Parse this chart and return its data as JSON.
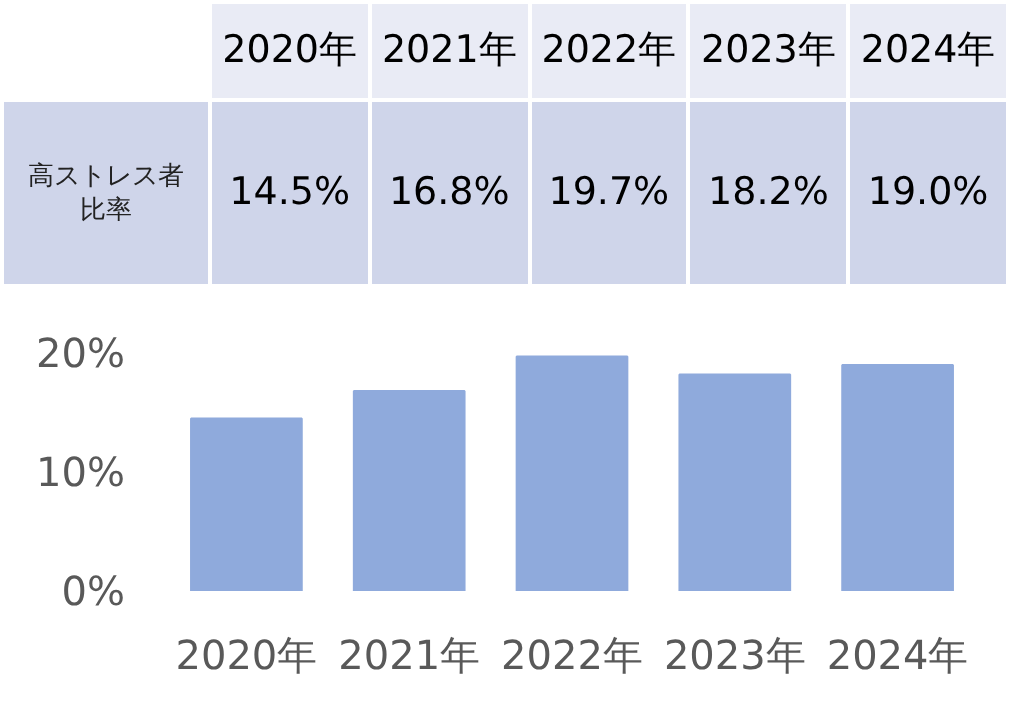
{
  "chart_data": {
    "type": "bar",
    "categories": [
      "2020年",
      "2021年",
      "2022年",
      "2023年",
      "2024年"
    ],
    "values": [
      14.5,
      16.8,
      19.7,
      18.2,
      19.0
    ],
    "value_labels": [
      "14.5%",
      "16.8%",
      "19.7%",
      "18.2%",
      "19.0%"
    ],
    "ylabel": "高ストレス者比率",
    "color": "#8faadc",
    "ylim": [
      0,
      20
    ],
    "yticks": [
      {
        "value": 0,
        "label": "0%"
      },
      {
        "value": 10,
        "label": "10%"
      },
      {
        "value": 20,
        "label": "20%"
      }
    ],
    "grid": false
  }
}
